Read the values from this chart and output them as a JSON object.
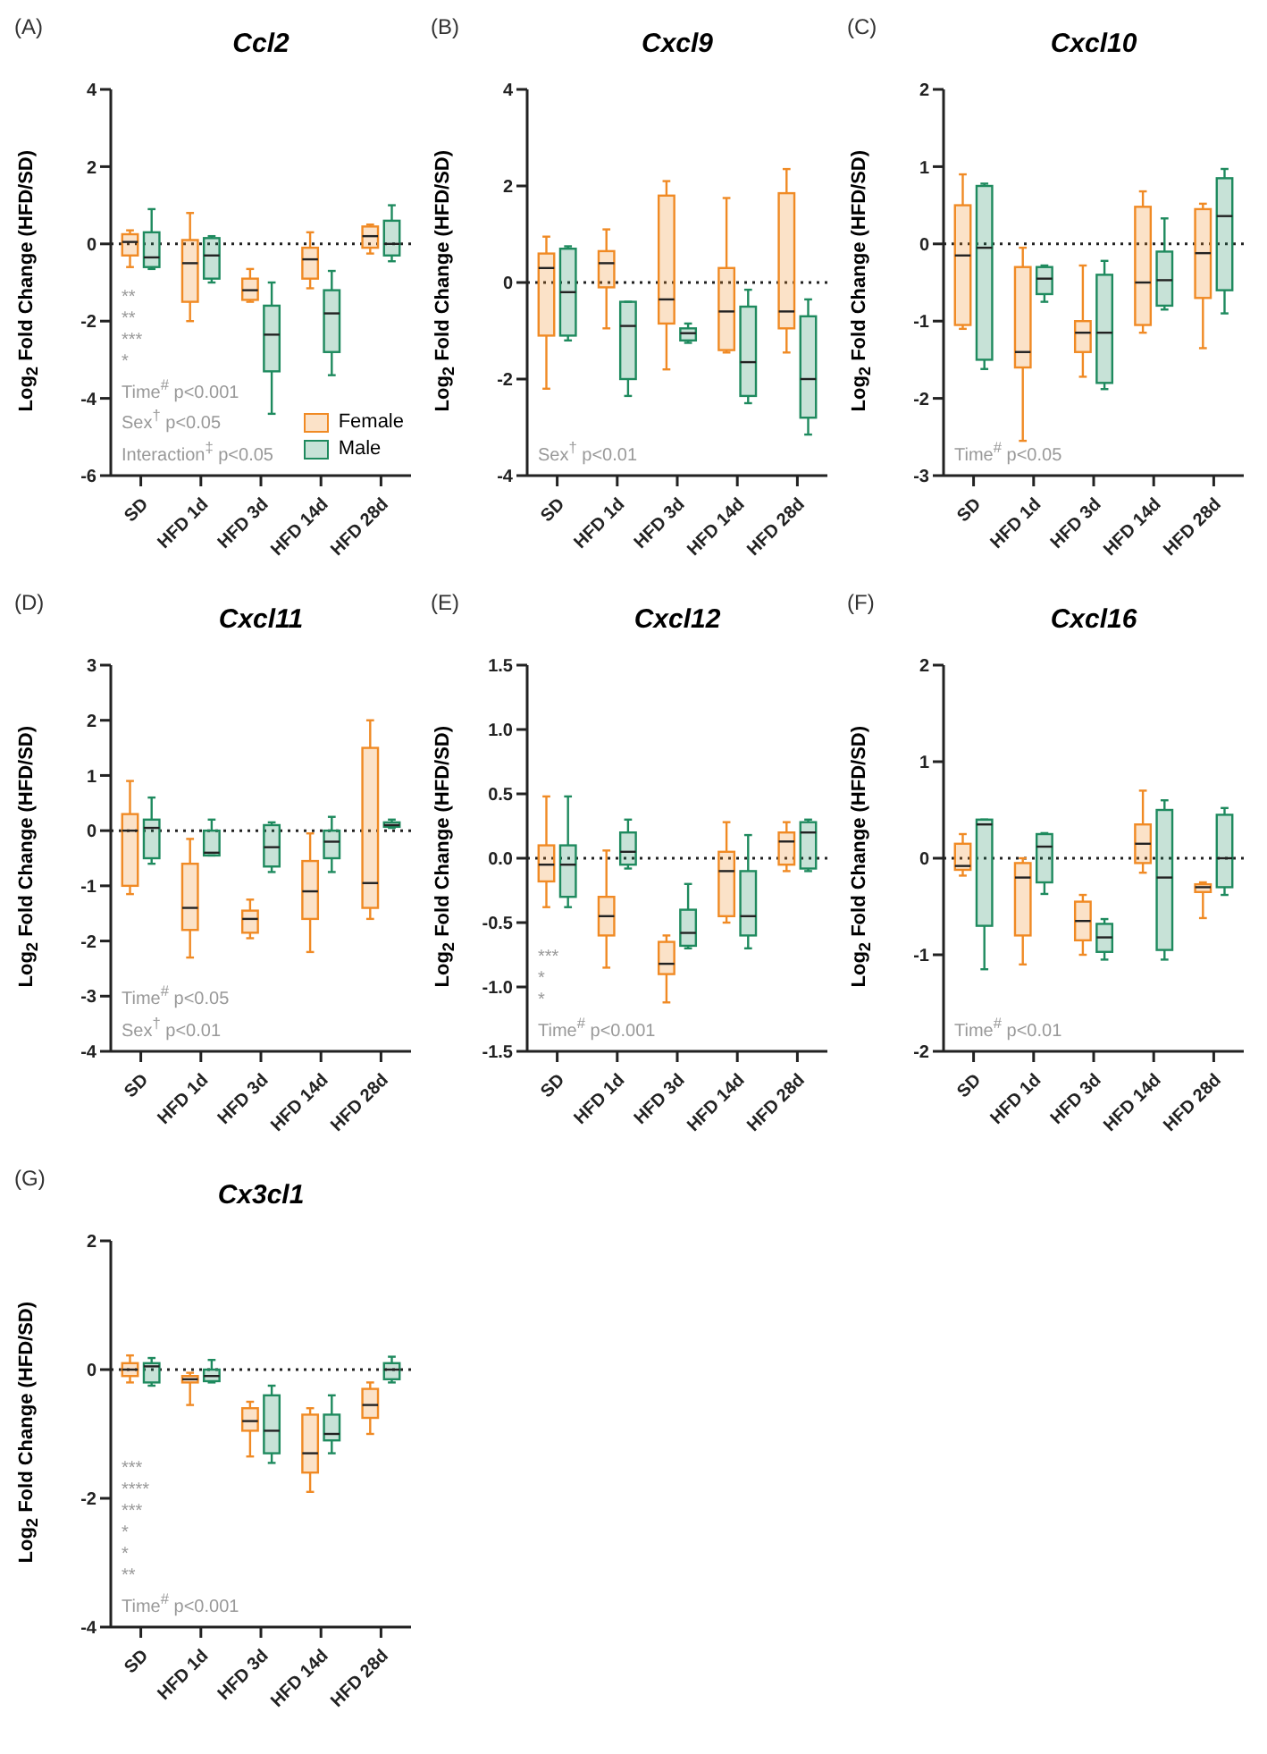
{
  "chart_data": [
    {
      "type": "box",
      "subtitle": "(A)",
      "title": "Ccl2",
      "ylabel": "Log$_{2}$ Fold Change (HFD/SD)",
      "categories": [
        "SD",
        "HFD 1d",
        "HFD 3d",
        "HFD 14d",
        "HFD 28d"
      ],
      "ylim": [
        -6,
        4
      ],
      "yticks": [
        -6,
        -4,
        -2,
        0,
        2,
        4
      ],
      "legend": "bottom right",
      "series": [
        {
          "name": "Female",
          "color": "#f08a24",
          "boxes": [
            {
              "low": -0.6,
              "q1": -0.3,
              "median": 0.05,
              "q3": 0.25,
              "high": 0.35
            },
            {
              "low": -2.0,
              "q1": -1.5,
              "median": -0.5,
              "q3": 0.1,
              "high": 0.8
            },
            {
              "low": -1.5,
              "q1": -1.45,
              "median": -1.2,
              "q3": -0.9,
              "high": -0.65
            },
            {
              "low": -1.15,
              "q1": -0.9,
              "median": -0.4,
              "q3": -0.1,
              "high": 0.3
            },
            {
              "low": -0.25,
              "q1": -0.1,
              "median": 0.2,
              "q3": 0.45,
              "high": 0.5
            }
          ]
        },
        {
          "name": "Male",
          "color": "#1e8a5e",
          "boxes": [
            {
              "low": -0.65,
              "q1": -0.6,
              "median": -0.35,
              "q3": 0.3,
              "high": 0.9
            },
            {
              "low": -1.0,
              "q1": -0.9,
              "median": -0.3,
              "q3": 0.15,
              "high": 0.2
            },
            {
              "low": -4.4,
              "q1": -3.3,
              "median": -2.35,
              "q3": -1.6,
              "high": -1.0
            },
            {
              "low": -3.4,
              "q1": -2.8,
              "median": -1.8,
              "q3": -1.2,
              "high": -0.7
            },
            {
              "low": -0.45,
              "q1": -0.3,
              "median": 0.0,
              "q3": 0.6,
              "high": 1.0
            }
          ]
        }
      ],
      "ref_lines": [
        {
          "axis": "y",
          "value": 0,
          "line_style": "dotted"
        }
      ],
      "annotations": [
        "**",
        "**",
        "***",
        "*",
        "Time$^{#}$ p<0.001",
        "Sex$^{†}$ p<0.05",
        "Interaction$^{‡}$ p<0.05"
      ]
    },
    {
      "type": "box",
      "subtitle": "(B)",
      "title": "Cxcl9",
      "ylabel": "Log$_{2}$ Fold Change (HFD/SD)",
      "categories": [
        "SD",
        "HFD 1d",
        "HFD 3d",
        "HFD 14d",
        "HFD 28d"
      ],
      "ylim": [
        -4,
        4
      ],
      "yticks": [
        -4,
        -2,
        0,
        2,
        4
      ],
      "series": [
        {
          "color": "#f08a24",
          "boxes": [
            {
              "low": -2.2,
              "q1": -1.1,
              "median": 0.3,
              "q3": 0.6,
              "high": 0.95
            },
            {
              "low": -0.95,
              "q1": -0.1,
              "median": 0.4,
              "q3": 0.65,
              "high": 1.1
            },
            {
              "low": -1.8,
              "q1": -0.85,
              "median": -0.35,
              "q3": 1.8,
              "high": 2.1
            },
            {
              "low": -1.45,
              "q1": -1.4,
              "median": -0.6,
              "q3": 0.3,
              "high": 1.75
            },
            {
              "low": -1.45,
              "q1": -0.95,
              "median": -0.6,
              "q3": 1.85,
              "high": 2.35
            }
          ]
        },
        {
          "color": "#1e8a5e",
          "boxes": [
            {
              "low": -1.2,
              "q1": -1.1,
              "median": -0.2,
              "q3": 0.7,
              "high": 0.75
            },
            {
              "low": -2.35,
              "q1": -2.0,
              "median": -0.9,
              "q3": -0.4,
              "high": -0.4
            },
            {
              "low": -1.25,
              "q1": -1.2,
              "median": -1.05,
              "q3": -0.95,
              "high": -0.85
            },
            {
              "low": -2.5,
              "q1": -2.35,
              "median": -1.65,
              "q3": -0.5,
              "high": -0.15
            },
            {
              "low": -3.15,
              "q1": -2.8,
              "median": -2.0,
              "q3": -0.7,
              "high": -0.35
            }
          ]
        }
      ],
      "ref_lines": [
        {
          "axis": "y",
          "value": 0,
          "line_style": "dotted"
        }
      ],
      "annotations": [
        "Sex$^{†}$ p<0.01"
      ]
    },
    {
      "type": "box",
      "subtitle": "(C)",
      "title": "Cxcl10",
      "ylabel": "Log$_{2}$ Fold Change (HFD/SD)",
      "categories": [
        "SD",
        "HFD 1d",
        "HFD 3d",
        "HFD 14d",
        "HFD 28d"
      ],
      "ylim": [
        -3,
        2
      ],
      "yticks": [
        -3,
        -2,
        -1,
        0,
        1,
        2
      ],
      "series": [
        {
          "color": "#f08a24",
          "boxes": [
            {
              "low": -1.1,
              "q1": -1.05,
              "median": -0.15,
              "q3": 0.5,
              "high": 0.9
            },
            {
              "low": -2.55,
              "q1": -1.6,
              "median": -1.4,
              "q3": -0.3,
              "high": -0.05
            },
            {
              "low": -1.72,
              "q1": -1.4,
              "median": -1.15,
              "q3": -1.0,
              "high": -0.28
            },
            {
              "low": -1.15,
              "q1": -1.05,
              "median": -0.5,
              "q3": 0.48,
              "high": 0.68
            },
            {
              "low": -1.35,
              "q1": -0.7,
              "median": -0.12,
              "q3": 0.45,
              "high": 0.52
            }
          ]
        },
        {
          "color": "#1e8a5e",
          "boxes": [
            {
              "low": -1.62,
              "q1": -1.5,
              "median": -0.05,
              "q3": 0.75,
              "high": 0.78
            },
            {
              "low": -0.75,
              "q1": -0.65,
              "median": -0.45,
              "q3": -0.3,
              "high": -0.28
            },
            {
              "low": -1.88,
              "q1": -1.8,
              "median": -1.15,
              "q3": -0.4,
              "high": -0.22
            },
            {
              "low": -0.85,
              "q1": -0.8,
              "median": -0.47,
              "q3": -0.1,
              "high": 0.33
            },
            {
              "low": -0.9,
              "q1": -0.6,
              "median": 0.36,
              "q3": 0.85,
              "high": 0.97
            }
          ]
        }
      ],
      "ref_lines": [
        {
          "axis": "y",
          "value": 0,
          "line_style": "dotted"
        }
      ],
      "annotations": [
        "Time$^{#}$ p<0.05"
      ]
    },
    {
      "type": "box",
      "subtitle": "(D)",
      "title": "Cxcl11",
      "ylabel": "Log$_{2}$ Fold Change (HFD/SD)",
      "categories": [
        "SD",
        "HFD 1d",
        "HFD 3d",
        "HFD 14d",
        "HFD 28d"
      ],
      "ylim": [
        -4,
        3
      ],
      "yticks": [
        -4,
        -3,
        -2,
        -1,
        0,
        1,
        2,
        3
      ],
      "series": [
        {
          "color": "#f08a24",
          "boxes": [
            {
              "low": -1.15,
              "q1": -1.0,
              "median": 0.0,
              "q3": 0.3,
              "high": 0.9
            },
            {
              "low": -2.3,
              "q1": -1.8,
              "median": -1.4,
              "q3": -0.6,
              "high": -0.15
            },
            {
              "low": -1.95,
              "q1": -1.85,
              "median": -1.6,
              "q3": -1.45,
              "high": -1.25
            },
            {
              "low": -2.2,
              "q1": -1.6,
              "median": -1.1,
              "q3": -0.55,
              "high": -0.05
            },
            {
              "low": -1.6,
              "q1": -1.4,
              "median": -0.95,
              "q3": 1.5,
              "high": 2.0
            }
          ]
        },
        {
          "color": "#1e8a5e",
          "boxes": [
            {
              "low": -0.6,
              "q1": -0.5,
              "median": 0.05,
              "q3": 0.2,
              "high": 0.6
            },
            {
              "low": -0.45,
              "q1": -0.45,
              "median": -0.4,
              "q3": 0.0,
              "high": 0.2
            },
            {
              "low": -0.75,
              "q1": -0.65,
              "median": -0.3,
              "q3": 0.1,
              "high": 0.15
            },
            {
              "low": -0.75,
              "q1": -0.5,
              "median": -0.2,
              "q3": 0.0,
              "high": 0.25
            },
            {
              "low": 0.05,
              "q1": 0.07,
              "median": 0.1,
              "q3": 0.15,
              "high": 0.2
            }
          ]
        }
      ],
      "ref_lines": [
        {
          "axis": "y",
          "value": 0,
          "line_style": "dotted"
        }
      ],
      "annotations": [
        "Time$^{#}$ p<0.05",
        "Sex$^{†}$ p<0.01"
      ]
    },
    {
      "type": "box",
      "subtitle": "(E)",
      "title": "Cxcl12",
      "ylabel": "Log$_{2}$ Fold Change (HFD/SD)",
      "categories": [
        "SD",
        "HFD 1d",
        "HFD 3d",
        "HFD 14d",
        "HFD 28d"
      ],
      "ylim": [
        -1.5,
        1.5
      ],
      "yticks": [
        -1.5,
        {
          "value": -1,
          "label": "-1.0"
        },
        -0.5,
        {
          "value": 0,
          "label": "0.0"
        },
        0.5,
        {
          "value": 1,
          "label": "1.0"
        },
        1.5
      ],
      "series": [
        {
          "color": "#f08a24",
          "boxes": [
            {
              "low": -0.38,
              "q1": -0.18,
              "median": -0.05,
              "q3": 0.1,
              "high": 0.48
            },
            {
              "low": -0.85,
              "q1": -0.6,
              "median": -0.45,
              "q3": -0.3,
              "high": 0.06
            },
            {
              "low": -1.12,
              "q1": -0.9,
              "median": -0.82,
              "q3": -0.65,
              "high": -0.6
            },
            {
              "low": -0.5,
              "q1": -0.45,
              "median": -0.1,
              "q3": 0.05,
              "high": 0.28
            },
            {
              "low": -0.1,
              "q1": -0.05,
              "median": 0.13,
              "q3": 0.2,
              "high": 0.28
            }
          ]
        },
        {
          "color": "#1e8a5e",
          "boxes": [
            {
              "low": -0.38,
              "q1": -0.3,
              "median": -0.05,
              "q3": 0.1,
              "high": 0.48
            },
            {
              "low": -0.08,
              "q1": -0.05,
              "median": 0.05,
              "q3": 0.2,
              "high": 0.3
            },
            {
              "low": -0.7,
              "q1": -0.68,
              "median": -0.58,
              "q3": -0.4,
              "high": -0.2
            },
            {
              "low": -0.7,
              "q1": -0.6,
              "median": -0.45,
              "q3": -0.1,
              "high": 0.18
            },
            {
              "low": -0.1,
              "q1": -0.08,
              "median": 0.2,
              "q3": 0.28,
              "high": 0.3
            }
          ]
        }
      ],
      "ref_lines": [
        {
          "axis": "y",
          "value": 0,
          "line_style": "dotted"
        }
      ],
      "annotations": [
        "***",
        "*",
        "*",
        "Time$^{#}$ p<0.001"
      ]
    },
    {
      "type": "box",
      "subtitle": "(F)",
      "title": "Cxcl16",
      "ylabel": "Log$_{2}$ Fold Change (HFD/SD)",
      "categories": [
        "SD",
        "HFD 1d",
        "HFD 3d",
        "HFD 14d",
        "HFD 28d"
      ],
      "ylim": [
        -2,
        2
      ],
      "yticks": [
        -2,
        -1,
        0,
        1,
        2
      ],
      "series": [
        {
          "color": "#f08a24",
          "boxes": [
            {
              "low": -0.18,
              "q1": -0.12,
              "median": -0.08,
              "q3": 0.15,
              "high": 0.25
            },
            {
              "low": -1.1,
              "q1": -0.8,
              "median": -0.2,
              "q3": -0.05,
              "high": 0.0
            },
            {
              "low": -1.0,
              "q1": -0.85,
              "median": -0.65,
              "q3": -0.45,
              "high": -0.38
            },
            {
              "low": -0.15,
              "q1": -0.05,
              "median": 0.15,
              "q3": 0.35,
              "high": 0.7
            },
            {
              "low": -0.62,
              "q1": -0.35,
              "median": -0.3,
              "q3": -0.27,
              "high": -0.25
            }
          ]
        },
        {
          "color": "#1e8a5e",
          "boxes": [
            {
              "low": -1.15,
              "q1": -0.7,
              "median": 0.35,
              "q3": 0.4,
              "high": 0.4
            },
            {
              "low": -0.37,
              "q1": -0.25,
              "median": 0.12,
              "q3": 0.25,
              "high": 0.26
            },
            {
              "low": -1.05,
              "q1": -0.97,
              "median": -0.82,
              "q3": -0.68,
              "high": -0.63
            },
            {
              "low": -1.05,
              "q1": -0.95,
              "median": -0.2,
              "q3": 0.5,
              "high": 0.6
            },
            {
              "low": -0.38,
              "q1": -0.3,
              "median": 0.0,
              "q3": 0.45,
              "high": 0.52
            }
          ]
        }
      ],
      "ref_lines": [
        {
          "axis": "y",
          "value": 0,
          "line_style": "dotted"
        }
      ],
      "annotations": [
        "Time$^{#}$ p<0.01"
      ]
    },
    {
      "type": "box",
      "subtitle": "(G)",
      "title": "Cx3cl1",
      "ylabel": "Log$_{2}$ Fold Change (HFD/SD)",
      "categories": [
        "SD",
        "HFD 1d",
        "HFD 3d",
        "HFD 14d",
        "HFD 28d"
      ],
      "ylim": [
        -4,
        2
      ],
      "yticks": [
        -4,
        -2,
        0,
        2
      ],
      "series": [
        {
          "color": "#f08a24",
          "boxes": [
            {
              "low": -0.2,
              "q1": -0.1,
              "median": 0.0,
              "q3": 0.1,
              "high": 0.22
            },
            {
              "low": -0.55,
              "q1": -0.2,
              "median": -0.15,
              "q3": -0.1,
              "high": -0.05
            },
            {
              "low": -1.35,
              "q1": -0.95,
              "median": -0.8,
              "q3": -0.6,
              "high": -0.5
            },
            {
              "low": -1.9,
              "q1": -1.6,
              "median": -1.3,
              "q3": -0.7,
              "high": -0.6
            },
            {
              "low": -1.0,
              "q1": -0.75,
              "median": -0.55,
              "q3": -0.3,
              "high": -0.2
            }
          ]
        },
        {
          "color": "#1e8a5e",
          "boxes": [
            {
              "low": -0.25,
              "q1": -0.2,
              "median": 0.05,
              "q3": 0.1,
              "high": 0.18
            },
            {
              "low": -0.2,
              "q1": -0.18,
              "median": -0.1,
              "q3": 0.0,
              "high": 0.15
            },
            {
              "low": -1.45,
              "q1": -1.3,
              "median": -0.95,
              "q3": -0.4,
              "high": -0.25
            },
            {
              "low": -1.3,
              "q1": -1.1,
              "median": -1.0,
              "q3": -0.7,
              "high": -0.4
            },
            {
              "low": -0.2,
              "q1": -0.15,
              "median": 0.0,
              "q3": 0.1,
              "high": 0.2
            }
          ]
        }
      ],
      "ref_lines": [
        {
          "axis": "y",
          "value": 0,
          "line_style": "dotted"
        }
      ],
      "annotations": [
        "***",
        "****",
        "***",
        "*",
        "*",
        "**",
        "Time$^{#}$ p<0.001"
      ]
    }
  ]
}
